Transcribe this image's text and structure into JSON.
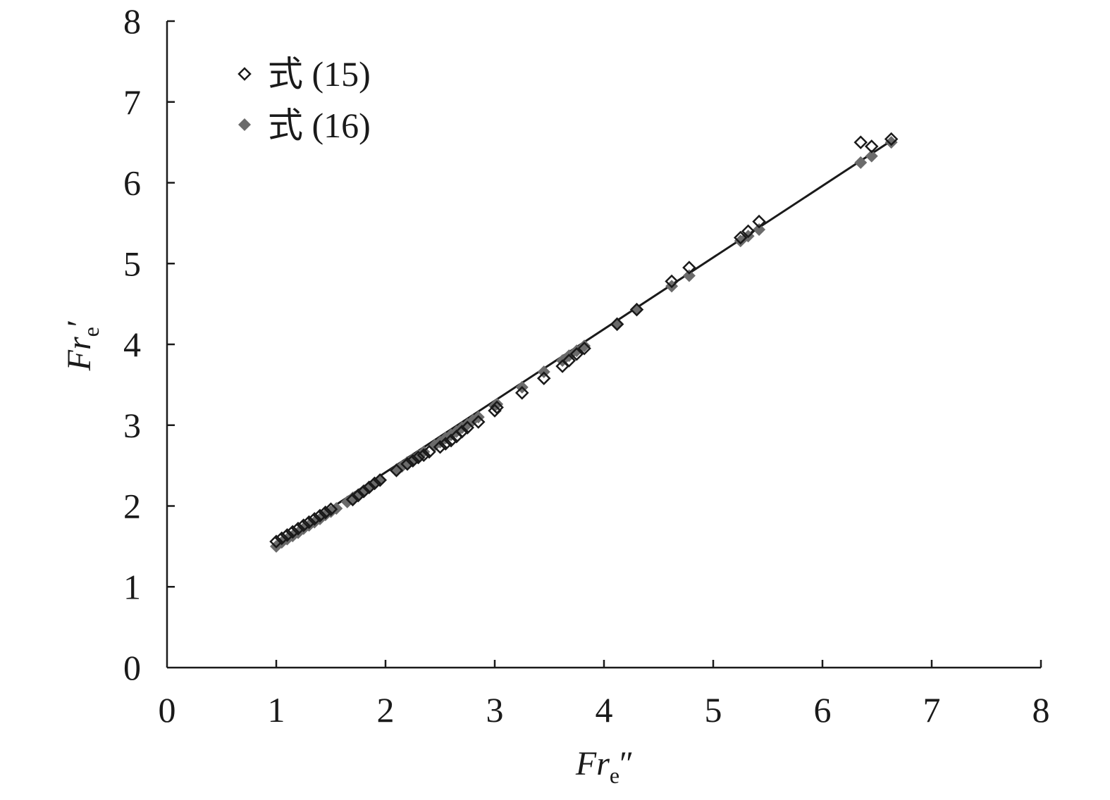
{
  "chart_data": {
    "type": "scatter",
    "title": "",
    "xlabel": {
      "main": "Fr",
      "sub": "e",
      "suffix": "″"
    },
    "ylabel": {
      "main": "Fr",
      "sub": "e",
      "suffix": "′"
    },
    "xlim": [
      0,
      8
    ],
    "ylim": [
      0,
      8
    ],
    "xticks": [
      "0",
      "1",
      "2",
      "3",
      "4",
      "5",
      "6",
      "7",
      "8"
    ],
    "yticks": [
      "0",
      "1",
      "2",
      "3",
      "4",
      "5",
      "6",
      "7",
      "8"
    ],
    "grid": false,
    "legend": {
      "position": "top-left",
      "entries": [
        "式 (15)",
        "式 (16)"
      ]
    },
    "series": [
      {
        "name": "式 (15)",
        "marker": "open-diamond",
        "color": "#1a1a1a",
        "points": [
          [
            1.0,
            1.56
          ],
          [
            1.05,
            1.6
          ],
          [
            1.1,
            1.64
          ],
          [
            1.15,
            1.68
          ],
          [
            1.2,
            1.72
          ],
          [
            1.25,
            1.76
          ],
          [
            1.3,
            1.8
          ],
          [
            1.35,
            1.84
          ],
          [
            1.4,
            1.88
          ],
          [
            1.45,
            1.92
          ],
          [
            1.5,
            1.96
          ],
          [
            1.7,
            2.08
          ],
          [
            1.75,
            2.13
          ],
          [
            1.8,
            2.18
          ],
          [
            1.85,
            2.23
          ],
          [
            1.9,
            2.28
          ],
          [
            1.95,
            2.32
          ],
          [
            2.1,
            2.44
          ],
          [
            2.2,
            2.52
          ],
          [
            2.25,
            2.56
          ],
          [
            2.3,
            2.6
          ],
          [
            2.35,
            2.63
          ],
          [
            2.4,
            2.67
          ],
          [
            2.5,
            2.73
          ],
          [
            2.55,
            2.77
          ],
          [
            2.6,
            2.81
          ],
          [
            2.65,
            2.86
          ],
          [
            2.7,
            2.92
          ],
          [
            2.75,
            2.97
          ],
          [
            2.85,
            3.04
          ],
          [
            3.0,
            3.18
          ],
          [
            3.02,
            3.22
          ],
          [
            3.25,
            3.4
          ],
          [
            3.45,
            3.58
          ],
          [
            3.62,
            3.73
          ],
          [
            3.68,
            3.8
          ],
          [
            3.75,
            3.88
          ],
          [
            3.82,
            3.95
          ],
          [
            4.12,
            4.25
          ],
          [
            4.3,
            4.43
          ],
          [
            4.62,
            4.78
          ],
          [
            4.78,
            4.95
          ],
          [
            5.25,
            5.32
          ],
          [
            5.32,
            5.4
          ],
          [
            5.42,
            5.52
          ],
          [
            6.35,
            6.5
          ],
          [
            6.45,
            6.45
          ],
          [
            6.63,
            6.54
          ]
        ]
      },
      {
        "name": "式 (16)",
        "marker": "filled-diamond",
        "color": "#6b6b6b",
        "points": [
          [
            1.0,
            1.5
          ],
          [
            1.05,
            1.55
          ],
          [
            1.1,
            1.59
          ],
          [
            1.15,
            1.63
          ],
          [
            1.2,
            1.67
          ],
          [
            1.25,
            1.72
          ],
          [
            1.3,
            1.76
          ],
          [
            1.35,
            1.8
          ],
          [
            1.4,
            1.84
          ],
          [
            1.45,
            1.89
          ],
          [
            1.5,
            1.93
          ],
          [
            1.55,
            1.97
          ],
          [
            1.65,
            2.05
          ],
          [
            1.7,
            2.1
          ],
          [
            1.75,
            2.14
          ],
          [
            1.8,
            2.19
          ],
          [
            1.85,
            2.23
          ],
          [
            1.9,
            2.28
          ],
          [
            1.95,
            2.32
          ],
          [
            2.1,
            2.45
          ],
          [
            2.15,
            2.49
          ],
          [
            2.2,
            2.54
          ],
          [
            2.25,
            2.58
          ],
          [
            2.3,
            2.62
          ],
          [
            2.35,
            2.67
          ],
          [
            2.45,
            2.75
          ],
          [
            2.5,
            2.79
          ],
          [
            2.55,
            2.84
          ],
          [
            2.6,
            2.88
          ],
          [
            2.65,
            2.92
          ],
          [
            2.7,
            2.97
          ],
          [
            2.75,
            3.01
          ],
          [
            2.8,
            3.06
          ],
          [
            2.85,
            3.1
          ],
          [
            3.0,
            3.24
          ],
          [
            3.02,
            3.26
          ],
          [
            3.25,
            3.47
          ],
          [
            3.45,
            3.66
          ],
          [
            3.62,
            3.8
          ],
          [
            3.68,
            3.86
          ],
          [
            3.75,
            3.92
          ],
          [
            3.82,
            3.98
          ],
          [
            4.12,
            4.25
          ],
          [
            4.3,
            4.43
          ],
          [
            4.62,
            4.72
          ],
          [
            4.78,
            4.85
          ],
          [
            5.25,
            5.28
          ],
          [
            5.32,
            5.34
          ],
          [
            5.42,
            5.42
          ],
          [
            6.35,
            6.25
          ],
          [
            6.45,
            6.33
          ],
          [
            6.63,
            6.5
          ]
        ]
      }
    ],
    "fit_line": {
      "x": [
        1.0,
        6.63
      ],
      "y": [
        1.53,
        6.52
      ],
      "color": "#1a1a1a"
    }
  }
}
